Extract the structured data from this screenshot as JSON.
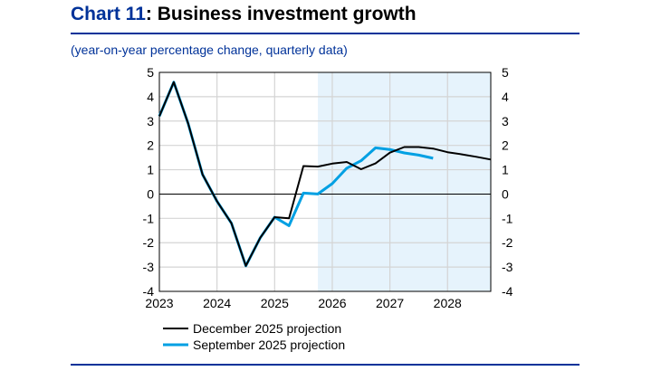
{
  "title": {
    "number": "Chart 11",
    "rest": ": Business investment growth"
  },
  "subtitle": "(year-on-year percentage change, quarterly data)",
  "colors": {
    "accent": "#003299",
    "december": "#000000",
    "september": "#00a0e3",
    "projection_shade": "#e6f3fc"
  },
  "chart_data": {
    "type": "line",
    "x_ticks": [
      "2023",
      "2024",
      "2025",
      "2026",
      "2027",
      "2028"
    ],
    "x": [
      "2023 Q1",
      "2023 Q2",
      "2023 Q3",
      "2023 Q4",
      "2024 Q1",
      "2024 Q2",
      "2024 Q3",
      "2024 Q4",
      "2025 Q1",
      "2025 Q2",
      "2025 Q3",
      "2025 Q4",
      "2026 Q1",
      "2026 Q2",
      "2026 Q3",
      "2026 Q4",
      "2027 Q1",
      "2027 Q2",
      "2027 Q3",
      "2027 Q4",
      "2028 Q1",
      "2028 Q2",
      "2028 Q3",
      "2028 Q4"
    ],
    "ylim": [
      -4,
      5
    ],
    "y_ticks": [
      "5",
      "4",
      "3",
      "2",
      "1",
      "0",
      "-1",
      "-2",
      "-3",
      "-4"
    ],
    "grid": true,
    "projection_shading_from": "2025 Q4",
    "legend_position": "bottom",
    "series": [
      {
        "name": "December 2025 projection",
        "values": [
          3.2,
          4.6,
          2.9,
          0.8,
          -0.3,
          -1.2,
          -2.95,
          -1.8,
          -0.95,
          -1.0,
          1.15,
          1.13,
          1.25,
          1.32,
          1.02,
          1.26,
          1.7,
          1.93,
          1.93,
          1.87,
          1.72,
          1.63,
          1.53,
          1.42
        ]
      },
      {
        "name": "September 2025 projection",
        "values": [
          3.2,
          4.6,
          2.9,
          0.8,
          -0.3,
          -1.2,
          -2.95,
          -1.8,
          -0.95,
          -1.3,
          0.04,
          0.0,
          0.43,
          1.06,
          1.37,
          1.9,
          1.83,
          1.69,
          1.6,
          1.47,
          null,
          null,
          null,
          null
        ]
      }
    ]
  }
}
